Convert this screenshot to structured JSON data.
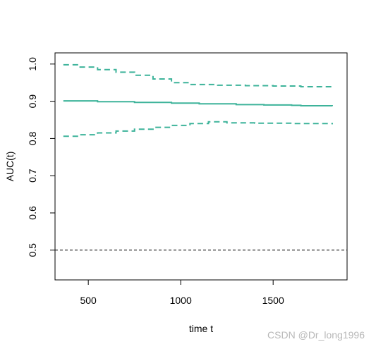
{
  "chart_data": {
    "type": "line",
    "xlabel": "time t",
    "ylabel": "AUC(t)",
    "xlim": [
      320,
      1900
    ],
    "ylim": [
      0.42,
      1.03
    ],
    "x_ticks": [
      500,
      1000,
      1500
    ],
    "y_ticks": [
      0.5,
      0.6,
      0.7,
      0.8,
      0.9,
      1.0
    ],
    "y_tick_labels": [
      "0.5",
      "0.6",
      "0.7",
      "0.8",
      "0.9",
      "1.0"
    ],
    "grid": false,
    "color": "#3DB39A",
    "series": [
      {
        "role": "estimate",
        "style": "solid",
        "x": [
          365,
          550,
          750,
          950,
          1100,
          1300,
          1450,
          1600,
          1650,
          1820
        ],
        "y": [
          0.901,
          0.899,
          0.897,
          0.895,
          0.893,
          0.891,
          0.89,
          0.889,
          0.888,
          0.887
        ]
      },
      {
        "role": "upper",
        "style": "dashed",
        "x": [
          365,
          450,
          550,
          650,
          750,
          850,
          950,
          1050,
          1200,
          1350,
          1500,
          1650,
          1820
        ],
        "y": [
          0.998,
          0.992,
          0.985,
          0.978,
          0.97,
          0.96,
          0.95,
          0.945,
          0.943,
          0.942,
          0.941,
          0.939,
          0.937
        ]
      },
      {
        "role": "lower",
        "style": "dashed",
        "x": [
          365,
          450,
          550,
          650,
          750,
          850,
          950,
          1050,
          1150,
          1250,
          1400,
          1600,
          1820
        ],
        "y": [
          0.806,
          0.81,
          0.815,
          0.82,
          0.825,
          0.83,
          0.835,
          0.84,
          0.845,
          0.842,
          0.841,
          0.84,
          0.838
        ]
      }
    ],
    "reference_line": {
      "y": 0.5,
      "style": "dashed",
      "color": "#000000"
    }
  },
  "watermark": "CSDN @Dr_long1996"
}
